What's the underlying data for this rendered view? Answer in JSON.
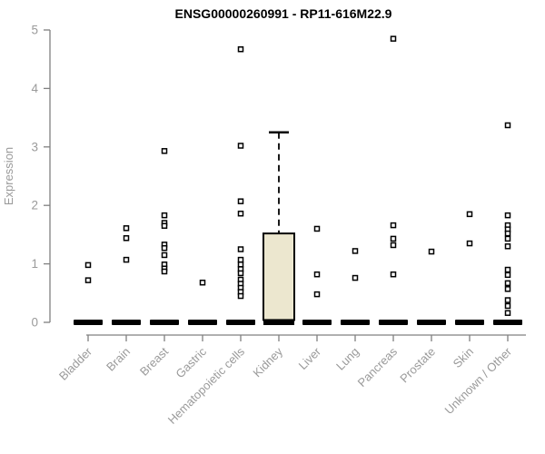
{
  "chart_data": {
    "type": "boxplot",
    "title": "ENSG00000260991 - RP11-616M22.9",
    "ylabel": "Expression",
    "xlabel": "",
    "ylim": [
      0,
      5
    ],
    "yticks": [
      0,
      1,
      2,
      3,
      4,
      5
    ],
    "grid": false,
    "legend": false,
    "categories": [
      "Bladder",
      "Brain",
      "Breast",
      "Gastric",
      "Hematopoietic cells",
      "Kidney",
      "Liver",
      "Lung",
      "Pancreas",
      "Prostate",
      "Skin",
      "Unknown / Other"
    ],
    "boxes": [
      {
        "category": "Bladder",
        "median": 0,
        "q1": 0,
        "q3": 0,
        "whisker_low": 0,
        "whisker_high": 0
      },
      {
        "category": "Brain",
        "median": 0,
        "q1": 0,
        "q3": 0,
        "whisker_low": 0,
        "whisker_high": 0
      },
      {
        "category": "Breast",
        "median": 0,
        "q1": 0,
        "q3": 0,
        "whisker_low": 0,
        "whisker_high": 0
      },
      {
        "category": "Gastric",
        "median": 0,
        "q1": 0,
        "q3": 0,
        "whisker_low": 0,
        "whisker_high": 0
      },
      {
        "category": "Hematopoietic cells",
        "median": 0,
        "q1": 0,
        "q3": 0,
        "whisker_low": 0,
        "whisker_high": 0
      },
      {
        "category": "Kidney",
        "median": 0,
        "q1": 0.04,
        "q3": 1.52,
        "whisker_low": 0,
        "whisker_high": 3.25
      },
      {
        "category": "Liver",
        "median": 0,
        "q1": 0,
        "q3": 0,
        "whisker_low": 0,
        "whisker_high": 0
      },
      {
        "category": "Lung",
        "median": 0,
        "q1": 0,
        "q3": 0,
        "whisker_low": 0,
        "whisker_high": 0
      },
      {
        "category": "Pancreas",
        "median": 0,
        "q1": 0,
        "q3": 0,
        "whisker_low": 0,
        "whisker_high": 0
      },
      {
        "category": "Prostate",
        "median": 0,
        "q1": 0,
        "q3": 0,
        "whisker_low": 0,
        "whisker_high": 0
      },
      {
        "category": "Skin",
        "median": 0,
        "q1": 0,
        "q3": 0,
        "whisker_low": 0,
        "whisker_high": 0
      },
      {
        "category": "Unknown / Other",
        "median": 0,
        "q1": 0,
        "q3": 0,
        "whisker_low": 0,
        "whisker_high": 0
      }
    ],
    "outliers": [
      [
        0.98,
        0.72
      ],
      [
        1.61,
        1.44,
        1.07
      ],
      [
        2.93,
        1.83,
        1.7,
        1.65,
        1.33,
        1.27,
        1.15,
        0.99,
        0.92,
        0.87
      ],
      [
        0.68
      ],
      [
        4.67,
        3.02,
        2.07,
        1.86,
        1.25,
        1.07,
        0.99,
        0.91,
        0.84,
        0.73,
        0.66,
        0.59,
        0.52,
        0.45
      ],
      [],
      [
        1.6,
        0.82,
        0.48
      ],
      [
        1.22,
        0.76
      ],
      [
        4.85,
        1.66,
        1.43,
        1.32,
        0.82
      ],
      [
        1.21
      ],
      [
        1.85,
        1.35
      ],
      [
        3.37,
        1.83,
        1.66,
        1.59,
        1.52,
        1.43,
        1.3,
        0.9,
        0.81,
        0.67,
        0.57,
        0.38,
        0.28,
        0.16
      ]
    ]
  },
  "colors": {
    "background": "#ffffff",
    "title": "#000000",
    "axis": "#808080",
    "tick_label": "#9a9a9a",
    "box_fill": "#ece7cf",
    "box_stroke": "#000000",
    "median_bar": "#000000",
    "whisker": "#000000",
    "marker_stroke": "#000000",
    "marker_fill": "#ffffff"
  }
}
